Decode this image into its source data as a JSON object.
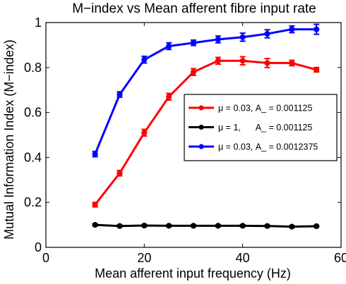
{
  "chart_data": {
    "type": "line",
    "title": "M−index vs Mean afferent fibre input rate",
    "xlabel": "Mean afferent input frequency (Hz)",
    "ylabel": "Mutual Information Index (M−index)",
    "xlim": [
      0,
      60
    ],
    "ylim": [
      0,
      1
    ],
    "xticks": [
      0,
      20,
      40,
      60
    ],
    "yticks": [
      0,
      0.2,
      0.4,
      0.6,
      0.8,
      1
    ],
    "xtick_labels": [
      "0",
      "20",
      "40",
      "60"
    ],
    "ytick_labels": [
      "0",
      "0.2",
      "0.4",
      "0.6",
      "0.8",
      "1"
    ],
    "grid": false,
    "legend_position": "right",
    "x": [
      10,
      15,
      20,
      25,
      30,
      35,
      40,
      45,
      50,
      55
    ],
    "series": [
      {
        "name": "μ = 0.03, A_ = 0.001125",
        "color": "#ff0000",
        "values": [
          0.19,
          0.33,
          0.51,
          0.67,
          0.78,
          0.83,
          0.83,
          0.82,
          0.82,
          0.79
        ],
        "errors": [
          0.01,
          0.012,
          0.015,
          0.015,
          0.015,
          0.015,
          0.018,
          0.02,
          0.012,
          0.01
        ]
      },
      {
        "name": "μ = 1,      A_ = 0.001125",
        "color": "#000000",
        "values": [
          0.1,
          0.095,
          0.097,
          0.096,
          0.096,
          0.096,
          0.096,
          0.095,
          0.092,
          0.094
        ],
        "errors": [
          0.004,
          0.004,
          0.004,
          0.004,
          0.004,
          0.004,
          0.004,
          0.004,
          0.004,
          0.004
        ]
      },
      {
        "name": "μ = 0.03, A_ = 0.0012375",
        "color": "#0000ff",
        "values": [
          0.415,
          0.68,
          0.835,
          0.895,
          0.91,
          0.925,
          0.935,
          0.95,
          0.97,
          0.97
        ],
        "errors": [
          0.012,
          0.012,
          0.015,
          0.015,
          0.012,
          0.015,
          0.018,
          0.018,
          0.015,
          0.022
        ]
      }
    ]
  }
}
